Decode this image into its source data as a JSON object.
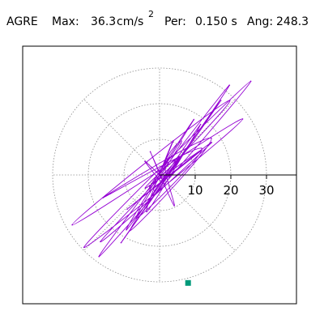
{
  "header": {
    "station": "AGRE",
    "max_label": "Max:",
    "max_value": "36.3",
    "max_units": "cm/s",
    "max_exponent": "2",
    "per_label": "Per:",
    "per_value": "0.150 s",
    "ang_label": "Ang:",
    "ang_value": "248.3"
  },
  "chart_data": {
    "type": "scatter",
    "title": "",
    "xlabel": "",
    "ylabel": "",
    "tick_labels": [
      "10",
      "20",
      "30"
    ],
    "radial_ticks": [
      10,
      20,
      30
    ],
    "rlim": [
      0,
      36.3
    ],
    "max_abs": 36.3,
    "angle_deg": 248.3,
    "polar_grid": true,
    "grid_rings": [
      10,
      20,
      30
    ],
    "grid_spokes_deg": [
      0,
      45,
      90,
      135,
      180,
      225,
      270,
      315
    ],
    "colors": {
      "trace": "#9400d3",
      "marker": "#009a7a",
      "grid": "#8c8c8c",
      "frame": "#000000"
    },
    "series": [
      {
        "x": [
          0.0,
          2.7,
          -2.7,
          9.6,
          -9.3,
          17.2,
          -10.8,
          19.6,
          -17.0,
          25.6,
          -21.2,
          23.3,
          -24.5,
          19.7,
          -16.6,
          14.6,
          -9.1,
          11.8,
          -4.0,
          5.5,
          -1.4,
          2.5,
          0.0,
          3.8,
          -3.6,
          11.5,
          -8.3,
          14.5,
          -15.9,
          11.8,
          -6.5,
          6.0,
          1.5,
          4.1,
          -2.6,
          1.0,
          -4.1,
          0.0
        ],
        "y": [
          0.0,
          4.8,
          -3.2,
          15.5,
          -15.4,
          20.9,
          -19.0,
          25.2,
          -22.9,
          26.3,
          -20.3,
          15.7,
          -14.0,
          20.9,
          -18.7,
          9.1,
          -9.6,
          7.0,
          -3.7,
          5.2,
          -4.4,
          1.5,
          0.0,
          9.5,
          -10.3,
          14.2,
          -15.6,
          10.3,
          -6.4,
          7.5,
          -12.1,
          8.9,
          3.2,
          -8.6,
          6.5,
          -2.2,
          3.8,
          0.0
        ]
      }
    ],
    "markers": [
      {
        "x": 8.0,
        "y": -30.3
      }
    ]
  }
}
